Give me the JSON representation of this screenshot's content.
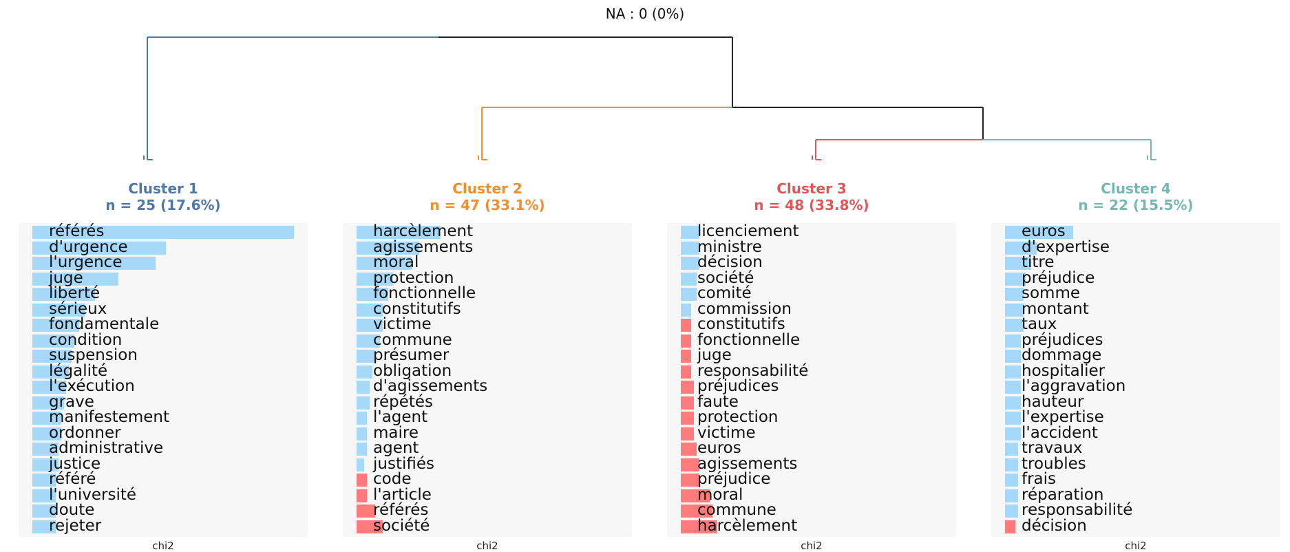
{
  "header": {
    "na_text": "NA : 0 (0%)"
  },
  "colors": {
    "cluster1": "#4e79a7",
    "cluster2": "#f28e2b",
    "cluster3": "#e15759",
    "cluster4": "#76b7b2",
    "root": "#222222",
    "positive_bar": "#a6d8fa",
    "negative_bar": "#ff7b7b",
    "panel_bg": "#f7f7f7"
  },
  "chart_data": {
    "type": "bar",
    "orientation": "horizontal",
    "xlabel": "chi2",
    "panels": [
      {
        "title": "Cluster 1",
        "subtitle": "n = 25 (17.6%)",
        "terms": [
          "référés",
          "d'urgence",
          "l'urgence",
          "juge",
          "liberté",
          "sérieux",
          "fondamentale",
          "condition",
          "suspension",
          "légalité",
          "l'exécution",
          "grave",
          "manifestement",
          "ordonner",
          "administrative",
          "justice",
          "référé",
          "l'université",
          "doute",
          "rejeter"
        ],
        "values": [
          100,
          51,
          47,
          33,
          24,
          20,
          18,
          16,
          15,
          14,
          13,
          12,
          11,
          11,
          10,
          10,
          9,
          9,
          9,
          9
        ]
      },
      {
        "title": "Cluster 2",
        "subtitle": "n = 47 (33.1%)",
        "terms": [
          "harcèlement",
          "agissements",
          "moral",
          "protection",
          "fonctionnelle",
          "constitutifs",
          "victime",
          "commune",
          "présumer",
          "obligation",
          "d'agissements",
          "répétés",
          "l'agent",
          "maire",
          "agent",
          "justifiés",
          "code",
          "l'article",
          "référés",
          "société"
        ],
        "values": [
          32,
          24,
          21,
          14,
          12,
          10,
          10,
          9,
          7,
          6,
          5,
          5,
          4,
          4,
          4,
          3,
          -4,
          -4,
          -7,
          -10
        ]
      },
      {
        "title": "Cluster 3",
        "subtitle": "n = 48 (33.8%)",
        "terms": [
          "licenciement",
          "ministre",
          "décision",
          "société",
          "comité",
          "commission",
          "constitutifs",
          "fonctionnelle",
          "juge",
          "responsabilité",
          "préjudices",
          "faute",
          "protection",
          "victime",
          "euros",
          "agissements",
          "préjudice",
          "moral",
          "commune",
          "harcèlement"
        ],
        "values": [
          7,
          7,
          7,
          6,
          6,
          4,
          -4,
          -4,
          -4,
          -4,
          -5,
          -5,
          -5,
          -5,
          -6,
          -7,
          -7,
          -11,
          -12,
          -14
        ]
      },
      {
        "title": "Cluster 4",
        "subtitle": "n = 22 (15.5%)",
        "terms": [
          "euros",
          "d'expertise",
          "titre",
          "préjudice",
          "somme",
          "montant",
          "taux",
          "préjudices",
          "dommage",
          "hospitalier",
          "l'aggravation",
          "hauteur",
          "l'expertise",
          "l'accident",
          "travaux",
          "troubles",
          "frais",
          "réparation",
          "responsabilité",
          "décision"
        ],
        "values": [
          26,
          12,
          10,
          8,
          7,
          7,
          7,
          6,
          6,
          6,
          6,
          6,
          6,
          6,
          5,
          5,
          5,
          5,
          5,
          -4
        ]
      }
    ]
  }
}
